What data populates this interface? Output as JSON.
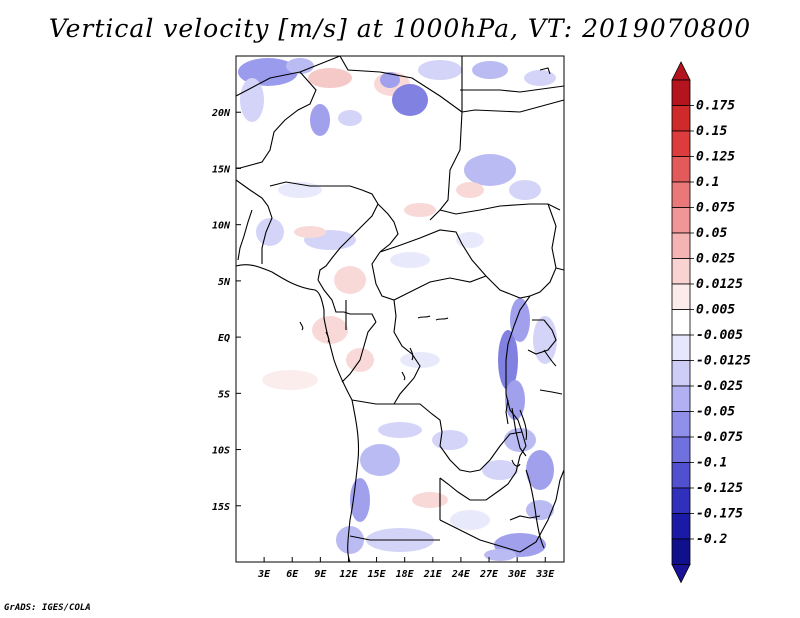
{
  "title": "Vertical velocity [m/s] at 1000hPa, VT: 2019070800",
  "credit": "GrADS: IGES/COLA",
  "map": {
    "lon_range": [
      0,
      35
    ],
    "lat_range": [
      -20,
      25
    ],
    "lon_ticks": [
      "3E",
      "6E",
      "9E",
      "12E",
      "15E",
      "18E",
      "21E",
      "24E",
      "27E",
      "30E",
      "33E"
    ],
    "lat_ticks": [
      "20N",
      "15N",
      "10N",
      "5N",
      "EQ",
      "5S",
      "10S",
      "15S"
    ]
  },
  "colorbar": {
    "labels": [
      "0.175",
      "0.15",
      "0.125",
      "0.1",
      "0.075",
      "0.05",
      "0.025",
      "0.0125",
      "0.005",
      "-0.005",
      "-0.0125",
      "-0.025",
      "-0.05",
      "-0.075",
      "-0.1",
      "-0.125",
      "-0.175",
      "-0.2"
    ],
    "colors": [
      "#b4141e",
      "#cf2a2a",
      "#dc3c3c",
      "#e35a5a",
      "#ea7878",
      "#f09696",
      "#f5b4b4",
      "#f9d2d2",
      "#fcebeb",
      "#ffffff",
      "#e6e6fc",
      "#cdcdf8",
      "#b0b0f2",
      "#9090ea",
      "#7070de",
      "#5050d0",
      "#3030bc",
      "#1a1aa6",
      "#10108c"
    ],
    "top_arrow_color": "#b4141e",
    "bottom_arrow_color": "#1a1296"
  }
}
